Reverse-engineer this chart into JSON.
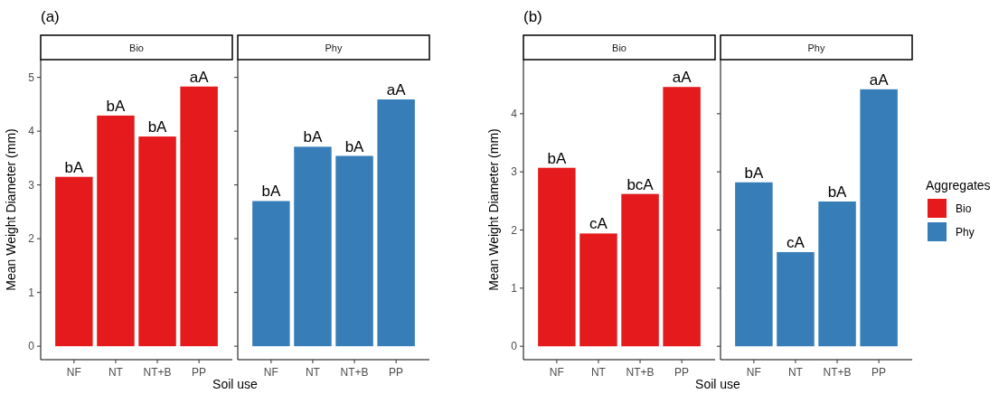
{
  "chart_data": [
    {
      "type": "bar",
      "title": "(a)",
      "subtitle": "Bio",
      "xlabel": "Soil use",
      "ylabel": "Mean Weight Diameter (mm)",
      "categories": [
        "NF",
        "NT",
        "NT+B",
        "PP"
      ],
      "ylim": [
        -0.25,
        5.33
      ],
      "yticks": [
        0,
        1,
        2,
        3,
        4,
        5
      ],
      "series": [
        {
          "color": "#e41a1c",
          "values": [
            3.15,
            4.29,
            3.9,
            4.83
          ],
          "value_labels": [
            "bA",
            "bA",
            "bA",
            "aA"
          ]
        }
      ]
    },
    {
      "type": "bar",
      "subtitle": "Phy",
      "categories": [
        "NF",
        "NT",
        "NT+B",
        "PP"
      ],
      "ylim": [
        -0.25,
        5.33
      ],
      "yticks": [
        0,
        1,
        2,
        3,
        4,
        5
      ],
      "tick_labels": "x",
      "series": [
        {
          "color": "#377eb8",
          "values": [
            2.7,
            3.71,
            3.54,
            4.59
          ],
          "value_labels": [
            "bA",
            "bA",
            "bA",
            "aA"
          ]
        }
      ]
    },
    {
      "type": "bar",
      "title": "(b)",
      "subtitle": "Bio",
      "xlabel": "Soil use",
      "ylabel": "Mean Weight Diameter (mm)",
      "categories": [
        "NF",
        "NT",
        "NT+B",
        "PP"
      ],
      "ylim": [
        -0.23,
        4.93
      ],
      "yticks": [
        0,
        1,
        2,
        3,
        4
      ],
      "series": [
        {
          "color": "#e41a1c",
          "values": [
            3.07,
            1.94,
            2.62,
            4.46
          ],
          "value_labels": [
            "bA",
            "cA",
            "bcA",
            "aA"
          ]
        }
      ]
    },
    {
      "type": "bar",
      "subtitle": "Phy",
      "categories": [
        "NF",
        "NT",
        "NT+B",
        "PP"
      ],
      "ylim": [
        -0.23,
        4.93
      ],
      "yticks": [
        0,
        1,
        2,
        3,
        4
      ],
      "tick_labels": "x",
      "legend": "right",
      "legend_title": "Aggregates",
      "series": [
        {
          "name": "Bio",
          "color": "#e41a1c",
          "values": [
            null,
            null,
            null,
            null
          ]
        },
        {
          "name": "Phy",
          "color": "#377eb8",
          "values": [
            2.82,
            1.62,
            2.49,
            4.42
          ],
          "value_labels": [
            "bA",
            "cA",
            "bA",
            "aA"
          ]
        }
      ]
    }
  ]
}
